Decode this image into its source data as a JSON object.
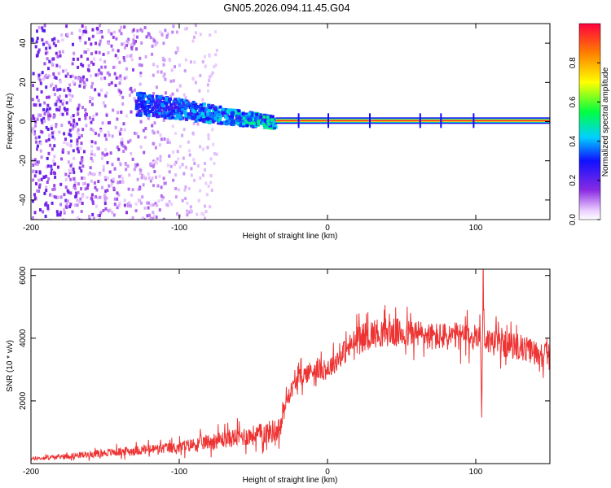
{
  "title": "GN05.2026.094.11.45.G04",
  "chart_data": [
    {
      "type": "heatmap",
      "name": "spectrogram",
      "xlabel": "Height of straight line (km)",
      "ylabel": "Frequency (Hz)",
      "xlim": [
        -200,
        150
      ],
      "ylim": [
        -50,
        50
      ],
      "xticks": [
        -200,
        -100,
        0,
        100
      ],
      "yticks": [
        -40,
        -20,
        0,
        20,
        40
      ],
      "colorbar": {
        "label": "Normalized spectral amplitude",
        "range": [
          0,
          1
        ],
        "ticks": [
          0.0,
          0.2,
          0.4,
          0.6,
          0.8
        ],
        "tick_labels": [
          "0.0",
          "0.2",
          "0.4",
          "0.6",
          "0.8"
        ]
      },
      "features": [
        {
          "kind": "carrier_line",
          "frequency": 0.5,
          "x_from": -35,
          "x_to": 150,
          "amplitude": 0.95
        },
        {
          "kind": "dispersed_band",
          "x_from": -130,
          "x_to": -35,
          "freq_start": 10,
          "freq_end": 0,
          "amplitude": 0.45
        },
        {
          "kind": "noise_cloud",
          "x_from": -200,
          "x_to": -90,
          "amplitude": 0.2
        }
      ]
    },
    {
      "type": "line",
      "name": "snr",
      "xlabel": "Height of straight line (km)",
      "ylabel": "SNR (10 * v/v)",
      "xlim": [
        -200,
        150
      ],
      "ylim": [
        0,
        6200
      ],
      "xticks": [
        -200,
        -100,
        0,
        100
      ],
      "yticks": [
        2000,
        4000,
        6000
      ],
      "color": "#ee3333",
      "series": [
        {
          "name": "SNR",
          "x": [
            -200,
            -180,
            -160,
            -140,
            -120,
            -100,
            -80,
            -60,
            -50,
            -40,
            -32,
            -28,
            -25,
            -20,
            -10,
            0,
            10,
            20,
            30,
            40,
            50,
            60,
            70,
            80,
            90,
            100,
            103,
            104,
            105,
            106,
            110,
            120,
            130,
            140,
            150
          ],
          "y": [
            150,
            220,
            300,
            380,
            450,
            520,
            700,
            850,
            900,
            1000,
            1100,
            2000,
            2300,
            2700,
            3000,
            3000,
            3500,
            3950,
            4150,
            4200,
            4150,
            4150,
            4050,
            4050,
            4050,
            4000,
            4400,
            1500,
            6100,
            3950,
            3900,
            3800,
            3700,
            3550,
            3450
          ]
        }
      ]
    }
  ]
}
